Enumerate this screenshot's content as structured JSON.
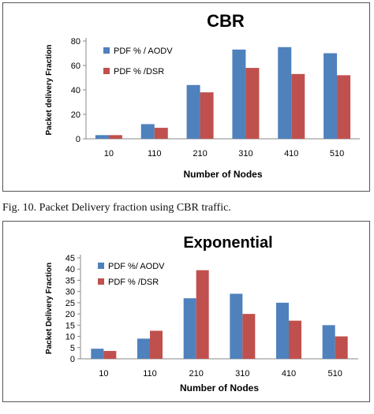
{
  "caption": "Fig. 10. Packet Delivery fraction using CBR traffic.",
  "chart_data": [
    {
      "type": "bar",
      "title": "CBR",
      "xlabel": "Number of Nodes",
      "ylabel": "Packet delivery Fraction",
      "categories": [
        "10",
        "110",
        "210",
        "310",
        "410",
        "510"
      ],
      "yticks": [
        "0",
        "20",
        "40",
        "60",
        "80"
      ],
      "ylim": [
        0,
        80
      ],
      "grid": false,
      "legend": "top-left",
      "series": [
        {
          "name": "PDF % / AODV",
          "color": "#4f81bd",
          "values": [
            3,
            12,
            44,
            73,
            75,
            70
          ]
        },
        {
          "name": "PDF % /DSR",
          "color": "#c0504d",
          "values": [
            3,
            9,
            38,
            58,
            53,
            52
          ]
        }
      ]
    },
    {
      "type": "bar",
      "title": "Exponential",
      "xlabel": "Number of Nodes",
      "ylabel": "Packet Delivery Fraction",
      "categories": [
        "10",
        "110",
        "210",
        "310",
        "410",
        "510"
      ],
      "yticks": [
        "0",
        "5",
        "10",
        "15",
        "20",
        "25",
        "30",
        "35",
        "40",
        "45"
      ],
      "ylim": [
        0,
        45
      ],
      "grid": false,
      "legend": "top-left",
      "series": [
        {
          "name": "PDF %/ AODV",
          "color": "#4f81bd",
          "values": [
            4.5,
            9,
            27,
            29,
            25,
            15
          ]
        },
        {
          "name": "PDF % /DSR",
          "color": "#c0504d",
          "values": [
            3.5,
            12.5,
            39.5,
            20,
            17,
            10
          ]
        }
      ]
    }
  ]
}
